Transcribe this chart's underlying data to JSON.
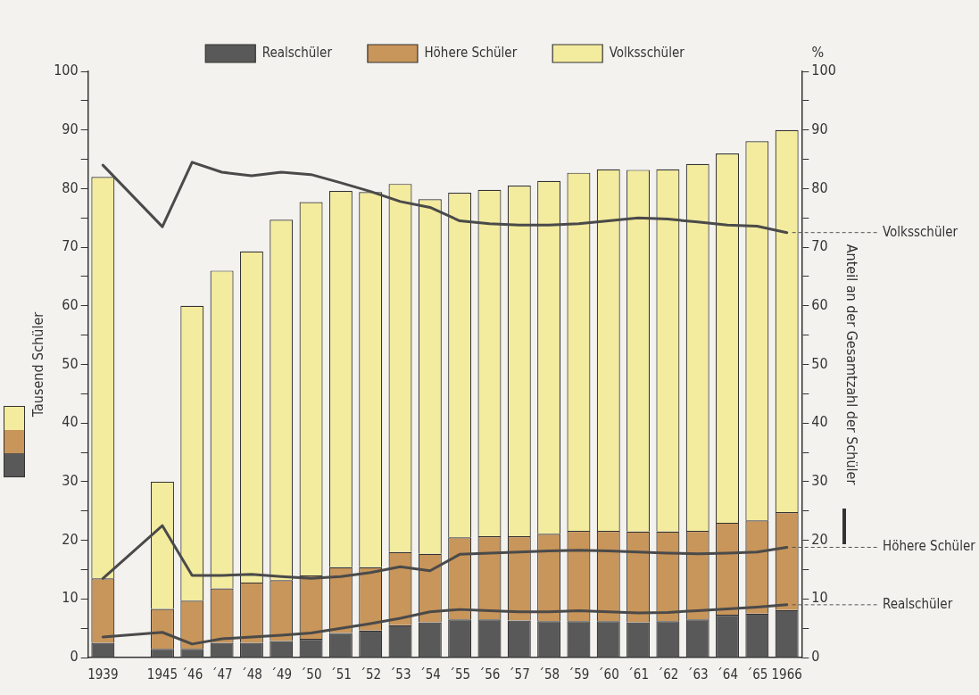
{
  "chart_data": {
    "type": "bar",
    "stacked": true,
    "ylabel": "Tausend Schüler",
    "y2label": "Anteil an der Gesamtzahl der Schüler",
    "annotations": [
      "%"
    ],
    "categories": [
      "1939",
      null,
      "1945",
      "´46",
      "´47",
      "´48",
      "´49",
      "´50",
      "´51",
      "´52",
      "´53",
      "´54",
      "´55",
      "´56",
      "´57",
      "´58",
      "´59",
      "´60",
      "´61",
      "´62",
      "´63",
      "´64",
      "´65",
      "1966"
    ],
    "series": [
      {
        "name": "Realschüler",
        "color": "#595959",
        "values": [
          2.5,
          null,
          1.5,
          1.5,
          2.5,
          2.5,
          2.8,
          3.2,
          4.2,
          4.6,
          5.5,
          6.0,
          6.5,
          6.5,
          6.3,
          6.2,
          6.2,
          6.2,
          6.0,
          6.2,
          6.5,
          7.3,
          7.5,
          8.1
        ]
      },
      {
        "name": "Höhere Schüler",
        "color": "#c8955a",
        "values": [
          11.0,
          null,
          6.8,
          8.2,
          9.3,
          10.3,
          10.4,
          10.8,
          11.2,
          10.8,
          12.5,
          11.7,
          14.0,
          14.2,
          14.4,
          14.9,
          15.4,
          15.4,
          15.5,
          15.3,
          15.1,
          15.7,
          15.9,
          16.7
        ]
      },
      {
        "name": "Volksschüler",
        "color": "#f3eb9e",
        "values": [
          68.5,
          null,
          21.7,
          50.3,
          54.2,
          56.5,
          61.5,
          63.7,
          64.2,
          64.0,
          62.8,
          60.5,
          58.8,
          59.1,
          59.8,
          60.2,
          61.1,
          61.7,
          61.7,
          61.8,
          62.6,
          63.0,
          64.7,
          65.2
        ]
      },
      {
        "name": "Volksschüler",
        "type": "line",
        "axis": "y2",
        "color": "#4a4a4a",
        "values": [
          84,
          null,
          73.5,
          84.5,
          82.8,
          82.2,
          82.8,
          82.4,
          81,
          79.5,
          77.8,
          76.8,
          74.5,
          74,
          73.8,
          73.8,
          74,
          74.5,
          75,
          74.8,
          74.3,
          73.8,
          73.6,
          72.5
        ]
      },
      {
        "name": "Höhere Schüler",
        "type": "line",
        "axis": "y2",
        "color": "#4a4a4a",
        "values": [
          13.5,
          null,
          22.5,
          14,
          14,
          14.2,
          13.8,
          13.5,
          13.8,
          14.5,
          15.5,
          14.8,
          17.6,
          17.8,
          18,
          18.2,
          18.3,
          18.2,
          18,
          17.8,
          17.7,
          17.8,
          18,
          18.8
        ]
      },
      {
        "name": "Realschüler",
        "type": "line",
        "axis": "y2",
        "color": "#4a4a4a",
        "values": [
          3.5,
          null,
          4.3,
          2.3,
          3.2,
          3.5,
          3.8,
          4.2,
          5,
          5.8,
          6.7,
          7.8,
          8.2,
          8,
          7.8,
          7.8,
          8,
          7.8,
          7.6,
          7.7,
          8,
          8.3,
          8.6,
          9
        ]
      }
    ],
    "ylim": [
      0,
      100
    ],
    "yticks": [
      0,
      {
        "value": 5,
        "label": null
      },
      10,
      {
        "value": 15,
        "label": null
      },
      20,
      {
        "value": 25,
        "label": null
      },
      30,
      {
        "value": 35,
        "label": null
      },
      40,
      {
        "value": 45,
        "label": null
      },
      50,
      {
        "value": 55,
        "label": null
      },
      60,
      {
        "value": 65,
        "label": null
      },
      70,
      {
        "value": 75,
        "label": null
      },
      80,
      {
        "value": 85,
        "label": null
      },
      90,
      {
        "value": 95,
        "label": null
      },
      100
    ],
    "y2lim": [
      0,
      100
    ],
    "y2ticks": [
      0,
      {
        "value": 5,
        "label": null
      },
      10,
      {
        "value": 15,
        "label": null
      },
      20,
      {
        "value": 25,
        "label": null
      },
      30,
      {
        "value": 35,
        "label": null
      },
      40,
      {
        "value": 45,
        "label": null
      },
      50,
      {
        "value": 55,
        "label": null
      },
      60,
      {
        "value": 65,
        "label": null
      },
      70,
      {
        "value": 75,
        "label": null
      },
      80,
      {
        "value": 85,
        "label": null
      },
      90,
      {
        "value": 95,
        "label": null
      },
      100
    ],
    "legend": "top",
    "grid": false,
    "marker": "none",
    "line_style": "solid"
  }
}
